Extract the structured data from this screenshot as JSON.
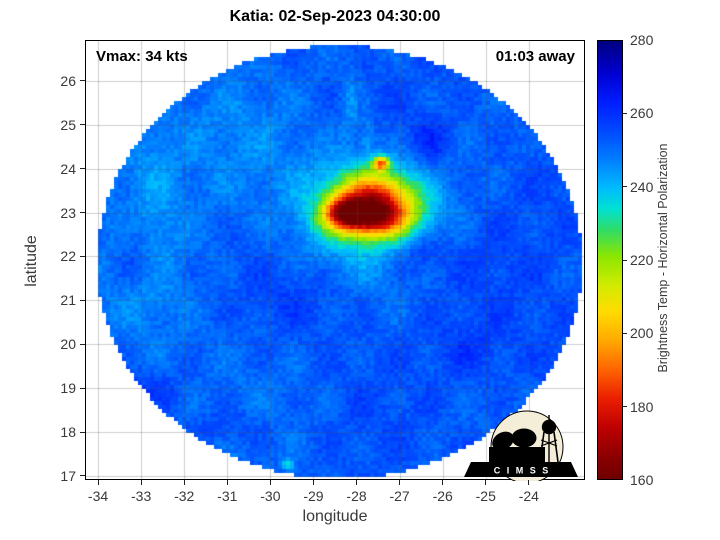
{
  "chart_data": {
    "type": "heatmap",
    "title": "Katia: 02-Sep-2023 04:30:00",
    "xlabel": "longitude",
    "ylabel": "latitude",
    "xlim": [
      -34.28,
      -22.72
    ],
    "ylim": [
      16.93,
      26.91
    ],
    "xticks": [
      -34,
      -33,
      -32,
      -31,
      -30,
      -29,
      -28,
      -27,
      -26,
      -25,
      -24
    ],
    "yticks": [
      17,
      18,
      19,
      20,
      21,
      22,
      23,
      24,
      25,
      26
    ],
    "grid": true,
    "annotations": {
      "vmax": "Vmax: 34 kts",
      "eta": "01:03 away"
    },
    "colorbar": {
      "label": "Brightness Temp - Horizontal Polarization",
      "min": 160,
      "max": 280,
      "ticks": [
        280,
        260,
        240,
        220,
        200,
        180,
        160
      ],
      "interior_ticks": [
        260,
        240,
        220,
        200,
        180
      ],
      "stops": [
        [
          280,
          "#000080"
        ],
        [
          271,
          "#0000d2"
        ],
        [
          263,
          "#001eff"
        ],
        [
          255,
          "#004bff"
        ],
        [
          247,
          "#0082ff"
        ],
        [
          240,
          "#00b9ff"
        ],
        [
          234,
          "#00e1d2"
        ],
        [
          228,
          "#32dc64"
        ],
        [
          221,
          "#8ce600"
        ],
        [
          213,
          "#d2eb00"
        ],
        [
          206,
          "#ffdc00"
        ],
        [
          198,
          "#ffaa00"
        ],
        [
          190,
          "#ff6400"
        ],
        [
          182,
          "#eb1e00"
        ],
        [
          174,
          "#bd0000"
        ],
        [
          166,
          "#8c0000"
        ],
        [
          160,
          "#6e0000"
        ]
      ]
    },
    "swath": {
      "center_lon": -28.39,
      "center_lat": 21.87,
      "radius_lon": 5.63,
      "radius_lat": 4.94,
      "base_temp": 252.5,
      "east_gradient": 2.5,
      "noise_amp": 6,
      "pixel_size": 4
    },
    "features": [
      {
        "lon": -27.57,
        "lat": 23.3,
        "amp": -55,
        "slon": 0.62,
        "slat": 0.42
      },
      {
        "lon": -27.72,
        "lat": 22.85,
        "amp": -46,
        "slon": 0.62,
        "slat": 0.28
      },
      {
        "lon": -28.32,
        "lat": 23.02,
        "amp": -40,
        "slon": 0.29,
        "slat": 0.24
      },
      {
        "lon": -27.72,
        "lat": 23.05,
        "amp": -22,
        "slon": 1.15,
        "slat": 0.85
      },
      {
        "lon": -27.43,
        "lat": 24.12,
        "amp": -50,
        "slon": 0.13,
        "slat": 0.11
      },
      {
        "lon": -29.6,
        "lat": 17.25,
        "amp": -18,
        "slon": 0.09,
        "slat": 0.08
      },
      {
        "lon": -28.16,
        "lat": 25.45,
        "amp": -8,
        "slon": 0.15,
        "slat": 0.55
      },
      {
        "lon": -27.74,
        "lat": 24.7,
        "amp": -7,
        "slon": 0.12,
        "slat": 0.4
      },
      {
        "lon": -32.78,
        "lat": 22.85,
        "amp": -6,
        "slon": 0.45,
        "slat": 1.8
      },
      {
        "lon": -31.5,
        "lat": 24.6,
        "amp": -4,
        "slon": 1.5,
        "slat": 1.1
      },
      {
        "lon": -26.54,
        "lat": 22.05,
        "amp": 9,
        "slon": 0.45,
        "slat": 0.35
      },
      {
        "lon": -33.15,
        "lat": 22.4,
        "amp": 7,
        "slon": 0.3,
        "slat": 0.5
      },
      {
        "lon": -32.9,
        "lat": 21.7,
        "amp": 6,
        "slon": 0.35,
        "slat": 0.3
      },
      {
        "lon": -32.8,
        "lat": 19.0,
        "amp": 5,
        "slon": 0.5,
        "slat": 0.3
      },
      {
        "lon": -30.9,
        "lat": 18.1,
        "amp": 5,
        "slon": 0.6,
        "slat": 0.3
      },
      {
        "lon": -26.3,
        "lat": 24.6,
        "amp": 8,
        "slon": 0.35,
        "slat": 0.4
      },
      {
        "lon": -25.4,
        "lat": 19.8,
        "amp": 5,
        "slon": 0.55,
        "slat": 0.45
      },
      {
        "lon": -29.3,
        "lat": 21.0,
        "amp": 4,
        "slon": 0.8,
        "slat": 0.6
      }
    ],
    "logo_text": "C I M S S"
  }
}
